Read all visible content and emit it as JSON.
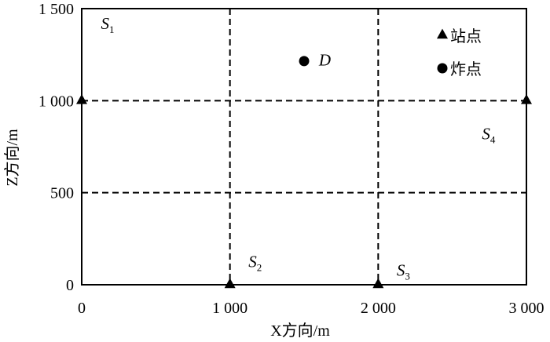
{
  "chart_data": {
    "type": "scatter",
    "xlabel": "X方向/m",
    "ylabel": "Z方向/m",
    "xlim": [
      0,
      3000
    ],
    "ylim": [
      0,
      1500
    ],
    "x_ticks": [
      {
        "value": 0,
        "label": "0"
      },
      {
        "value": 1000,
        "label": "1 000"
      },
      {
        "value": 2000,
        "label": "2 000"
      },
      {
        "value": 3000,
        "label": "3 000"
      }
    ],
    "y_ticks": [
      {
        "value": 0,
        "label": "0"
      },
      {
        "value": 500,
        "label": "500"
      },
      {
        "value": 1000,
        "label": "1 000"
      },
      {
        "value": 1500,
        "label": "1 500"
      }
    ],
    "grid_x": [
      1000,
      2000
    ],
    "grid_y": [
      500,
      1000
    ],
    "grid_style": "dashed",
    "series": [
      {
        "name": "站点",
        "marker": "triangle",
        "points": [
          {
            "x": 0,
            "y": 1000
          },
          {
            "x": 1000,
            "y": 0
          },
          {
            "x": 2000,
            "y": 0
          },
          {
            "x": 3000,
            "y": 1000
          }
        ]
      },
      {
        "name": "炸点",
        "marker": "circle",
        "points": [
          {
            "x": 1500,
            "y": 1215
          }
        ]
      }
    ],
    "region_labels": [
      {
        "main": "S",
        "sub": "1",
        "x": 130,
        "y": 1390
      },
      {
        "main": "S",
        "sub": "2",
        "x": 1125,
        "y": 95
      },
      {
        "main": "S",
        "sub": "3",
        "x": 2125,
        "y": 50
      },
      {
        "main": "S",
        "sub": "4",
        "x": 2700,
        "y": 790
      }
    ],
    "point_labels": [
      {
        "text": "D",
        "x": 1600,
        "y": 1190
      }
    ],
    "legend": {
      "position": "top-right",
      "items": [
        {
          "label": "站点",
          "marker": "triangle"
        },
        {
          "label": "炸点",
          "marker": "circle"
        }
      ]
    }
  }
}
